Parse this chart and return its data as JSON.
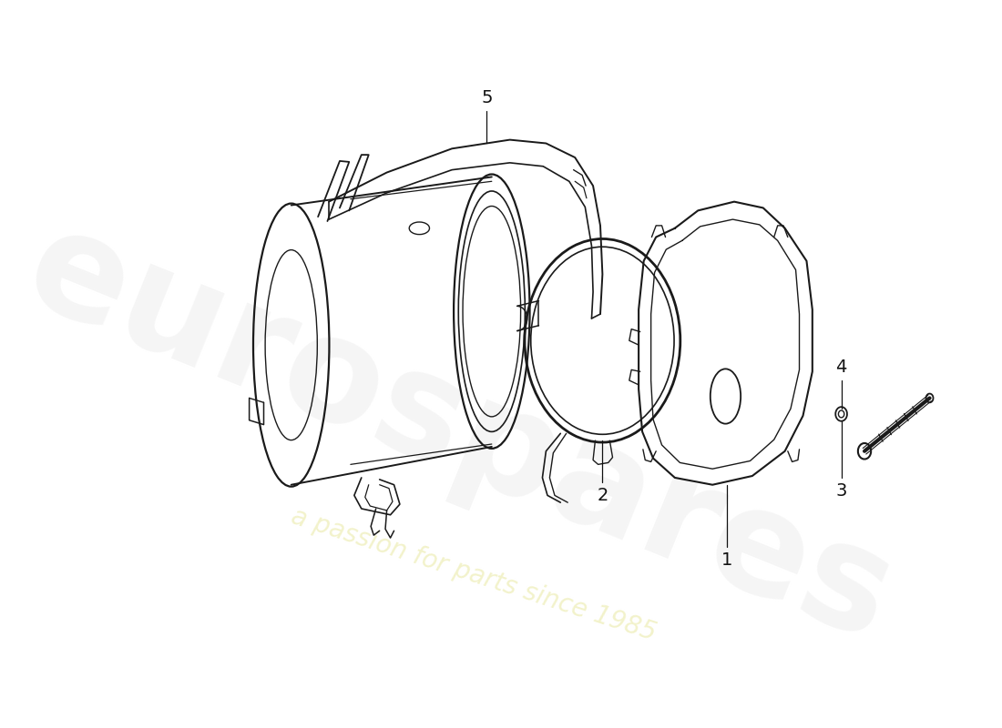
{
  "background_color": "#ffffff",
  "line_color": "#1a1a1a",
  "watermark_color1": "#e8e8e8",
  "watermark_color2": "#f2f2c8",
  "watermark_text1": "eurospares",
  "watermark_text2": "a passion for parts since 1985",
  "label_fontsize": 14
}
